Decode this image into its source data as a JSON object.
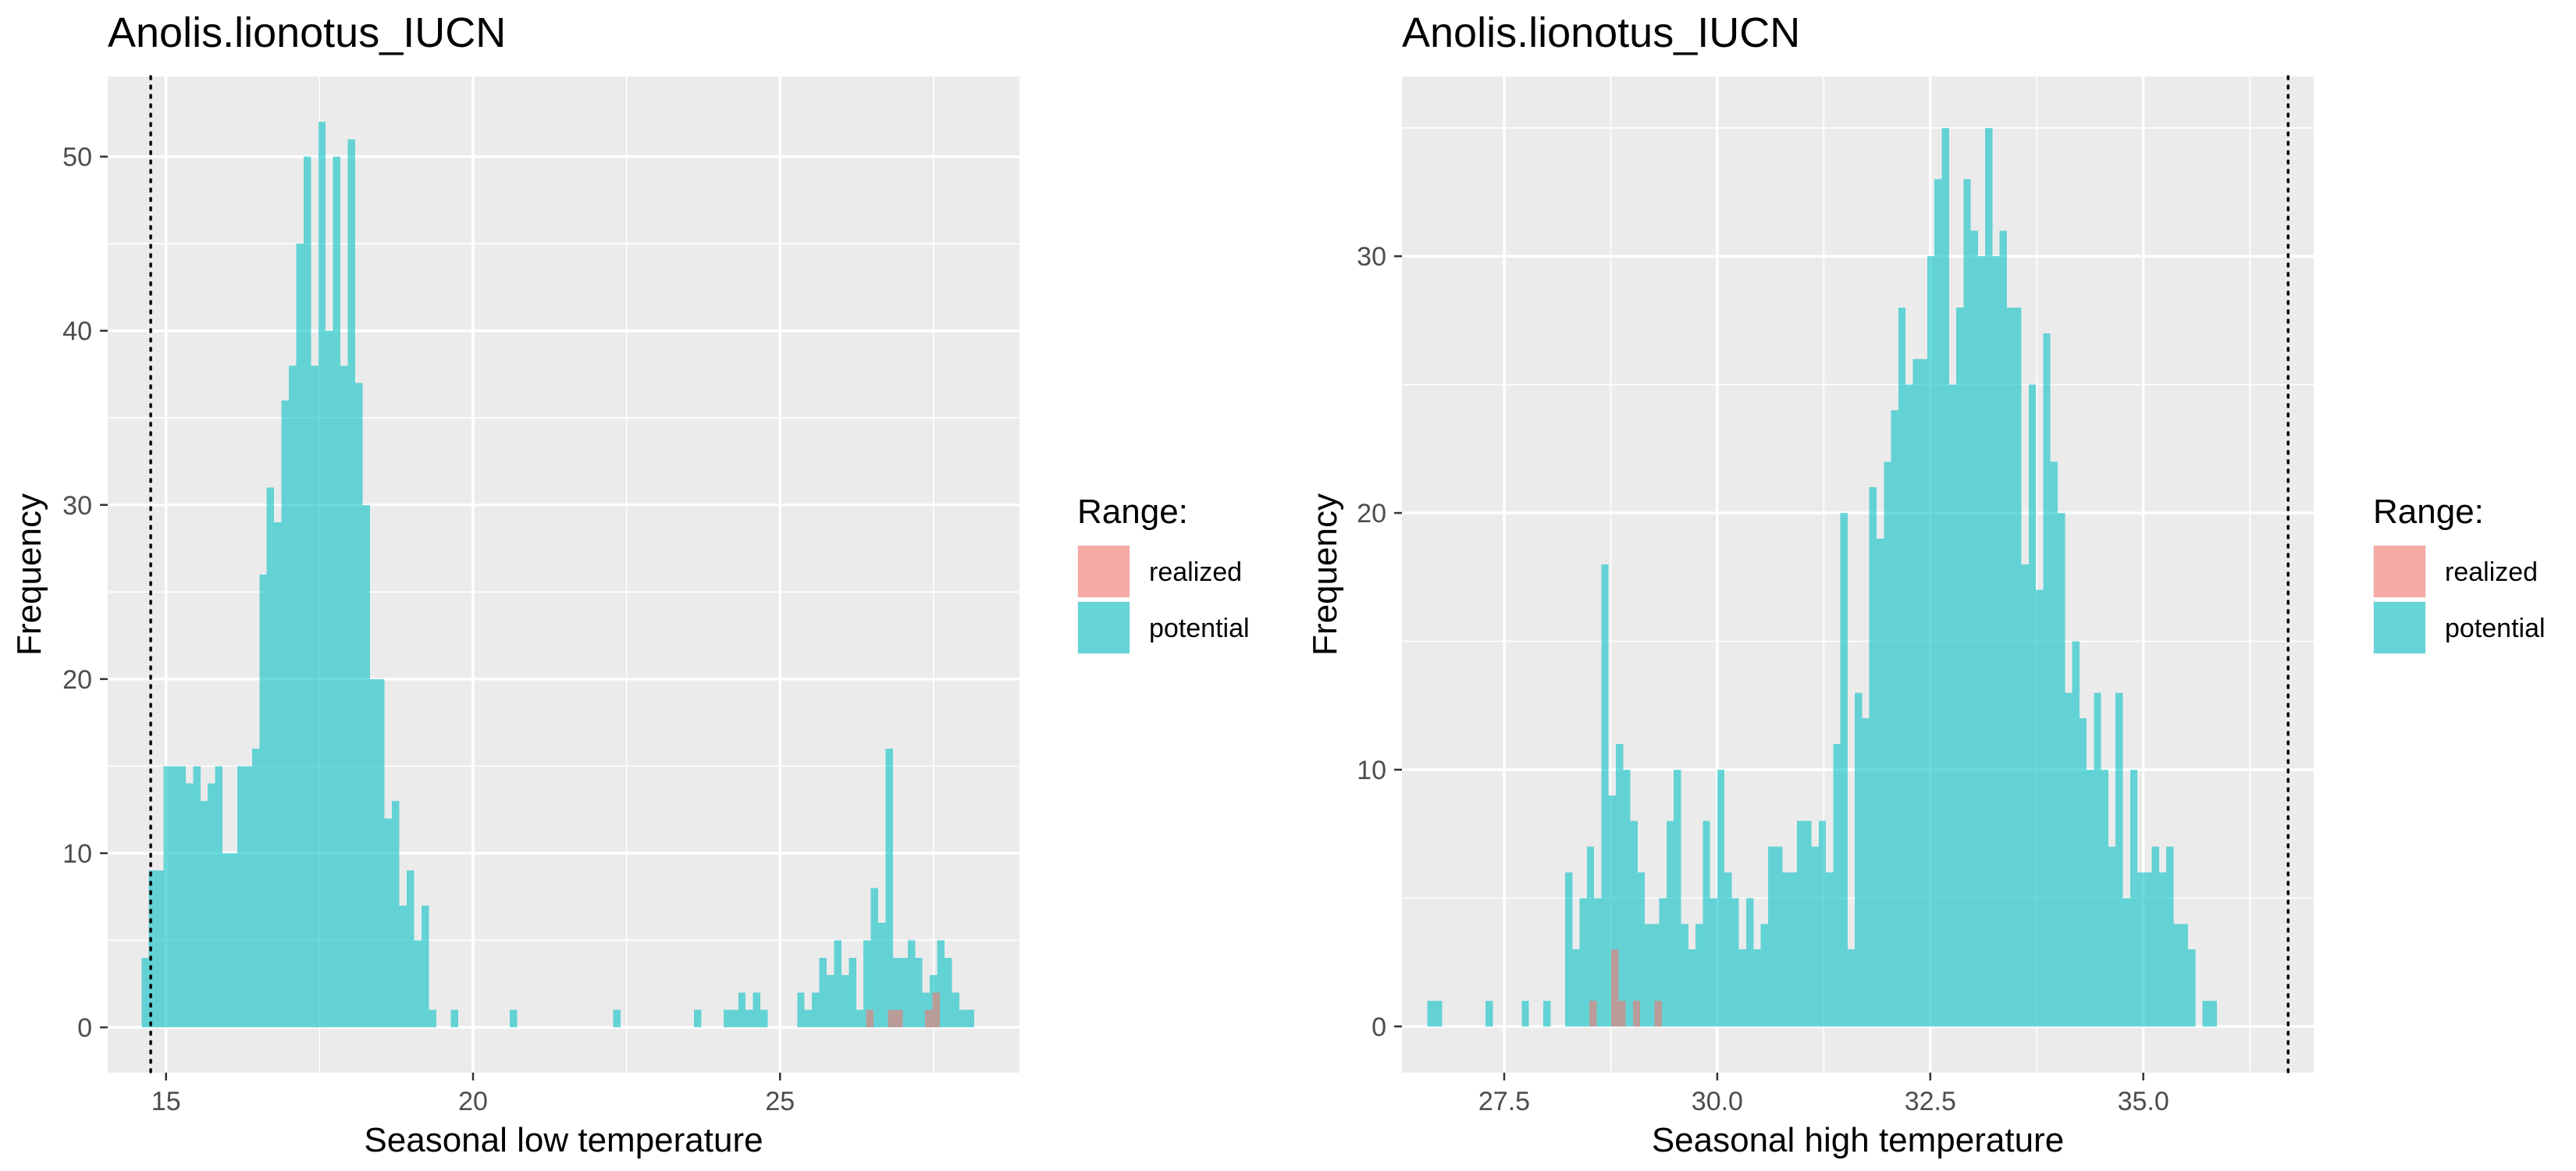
{
  "chart_data": [
    {
      "type": "histogram",
      "title": "Anolis.lionotus_IUCN",
      "xlabel": "Seasonal low temperature",
      "ylabel": "Frequency",
      "xlim": [
        14.05,
        28.9
      ],
      "ylim": [
        -2.6,
        54.6
      ],
      "x_ticks": [
        15,
        20,
        25
      ],
      "x_tick_labels": [
        "15",
        "20",
        "25"
      ],
      "y_ticks": [
        0,
        10,
        20,
        30,
        40,
        50
      ],
      "y_tick_labels": [
        "0",
        "10",
        "20",
        "30",
        "40",
        "50"
      ],
      "grid": true,
      "legend": {
        "title": "Range:",
        "position": "right",
        "entries": [
          {
            "label": "realized",
            "color": "#F8766D"
          },
          {
            "label": "potential",
            "color": "#00BFC4"
          }
        ]
      },
      "reference_line": {
        "x": 14.75,
        "style": "dotted"
      },
      "series": [
        {
          "name": "potential",
          "color": "#00BFC4",
          "bins": {
            "start": 14.6,
            "width": 0.12,
            "counts": [
              4,
              9,
              9,
              15,
              15,
              15,
              14,
              15,
              13,
              14,
              15,
              10,
              10,
              15,
              15,
              16,
              26,
              31,
              29,
              36,
              38,
              45,
              50,
              38,
              52,
              40,
              50,
              38,
              51,
              37,
              30,
              20,
              20,
              12,
              13,
              7,
              9,
              5,
              7,
              1,
              0,
              0,
              1,
              0,
              0,
              0,
              0,
              0,
              0,
              0,
              1,
              0,
              0,
              0,
              0,
              0,
              0,
              0,
              0,
              0,
              0,
              0,
              0,
              0,
              1,
              0,
              0,
              0,
              0,
              0,
              0,
              0,
              0,
              0,
              0,
              1,
              0,
              0,
              0,
              1,
              1,
              2,
              1,
              2,
              1,
              0,
              0,
              0,
              0,
              2,
              1,
              2,
              4,
              3,
              5,
              3,
              4,
              1,
              5,
              8,
              6,
              16,
              4,
              4,
              5,
              4,
              2,
              3,
              5,
              4,
              2,
              1,
              1
            ]
          }
        },
        {
          "name": "realized",
          "color": "#F8766D",
          "bins": {
            "start": 26.4,
            "width": 0.12,
            "counts": [
              1,
              0,
              0,
              1,
              1,
              0,
              0,
              0,
              1,
              2
            ]
          }
        }
      ]
    },
    {
      "type": "histogram",
      "title": "Anolis.lionotus_IUCN",
      "xlabel": "Seasonal high temperature",
      "ylabel": "Frequency",
      "xlim": [
        26.3,
        37.0
      ],
      "ylim": [
        -1.8,
        37.0
      ],
      "x_ticks": [
        27.5,
        30.0,
        32.5,
        35.0
      ],
      "x_tick_labels": [
        "27.5",
        "30.0",
        "32.5",
        "35.0"
      ],
      "y_ticks": [
        0,
        10,
        20,
        30
      ],
      "y_tick_labels": [
        "0",
        "10",
        "20",
        "30"
      ],
      "grid": true,
      "legend": {
        "title": "Range:",
        "position": "right",
        "entries": [
          {
            "label": "realized",
            "color": "#F8766D"
          },
          {
            "label": "potential",
            "color": "#00BFC4"
          }
        ]
      },
      "reference_line": {
        "x": 36.7,
        "style": "dotted"
      },
      "series": [
        {
          "name": "potential",
          "color": "#00BFC4",
          "bins": {
            "start": 26.6,
            "width": 0.085,
            "counts": [
              1,
              1,
              0,
              0,
              0,
              0,
              0,
              0,
              1,
              0,
              0,
              0,
              0,
              1,
              0,
              0,
              1,
              0,
              0,
              6,
              3,
              5,
              7,
              5,
              18,
              9,
              11,
              10,
              8,
              6,
              4,
              4,
              5,
              8,
              10,
              4,
              3,
              4,
              8,
              5,
              10,
              6,
              5,
              3,
              5,
              3,
              4,
              7,
              7,
              6,
              6,
              8,
              8,
              7,
              8,
              6,
              11,
              20,
              3,
              13,
              12,
              21,
              19,
              22,
              24,
              28,
              25,
              26,
              26,
              30,
              33,
              35,
              25,
              28,
              33,
              31,
              30,
              35,
              30,
              31,
              28,
              28,
              18,
              25,
              17,
              27,
              22,
              20,
              13,
              15,
              12,
              10,
              13,
              10,
              7,
              13,
              5,
              10,
              6,
              6,
              7,
              6,
              7,
              4,
              4,
              3,
              0,
              1,
              1,
              0,
              0,
              0,
              0,
              0
            ]
          }
        },
        {
          "name": "realized",
          "color": "#F8766D",
          "bins": {
            "start": 28.5,
            "width": 0.085,
            "counts": [
              1,
              0,
              0,
              3,
              1,
              0,
              1,
              0,
              0,
              1
            ]
          }
        }
      ]
    }
  ]
}
